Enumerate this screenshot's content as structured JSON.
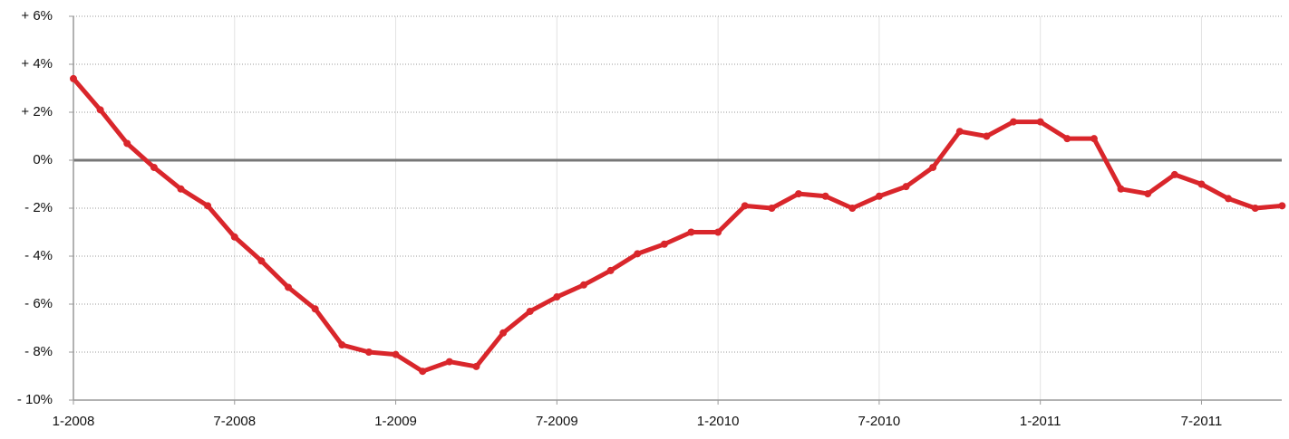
{
  "chart_data": {
    "type": "line",
    "categories": [
      "1-2008",
      null,
      null,
      null,
      null,
      null,
      "7-2008",
      null,
      null,
      null,
      null,
      null,
      "1-2009",
      null,
      null,
      null,
      null,
      null,
      "7-2009",
      null,
      null,
      null,
      null,
      null,
      "1-2010",
      null,
      null,
      null,
      null,
      null,
      "7-2010",
      null,
      null,
      null,
      null,
      null,
      "1-2011",
      null,
      null,
      null,
      null,
      null,
      "7-2011",
      null,
      null,
      null
    ],
    "series": [
      {
        "color": "#d9262b",
        "values": [
          3.4,
          2.1,
          0.7,
          -0.3,
          -1.2,
          -1.9,
          -3.2,
          -4.2,
          -5.3,
          -6.2,
          -7.7,
          -8.0,
          -8.1,
          -8.8,
          -8.4,
          -8.6,
          -7.2,
          -6.3,
          -5.7,
          -5.2,
          -4.6,
          -3.9,
          -3.5,
          -3.0,
          -3.0,
          -1.9,
          -2.0,
          -1.4,
          -1.5,
          -2.0,
          -1.5,
          -1.1,
          -0.3,
          1.2,
          1.0,
          1.6,
          1.6,
          0.9,
          0.9,
          -1.2,
          -1.4,
          -0.6,
          -1.0,
          -1.6,
          -2.0,
          -1.9
        ]
      }
    ],
    "ylim": [
      -10,
      6
    ],
    "yticks": [
      {
        "value": -10,
        "label": "- 10%"
      },
      {
        "value": -8,
        "label": "- 8%"
      },
      {
        "value": -6,
        "label": "- 6%"
      },
      {
        "value": -4,
        "label": "- 4%"
      },
      {
        "value": -2,
        "label": "- 2%"
      },
      {
        "value": 0,
        "label": "0%"
      },
      {
        "value": 2,
        "label": "+ 2%"
      },
      {
        "value": 4,
        "label": "+ 4%"
      },
      {
        "value": 6,
        "label": "+ 6%"
      }
    ],
    "grid": true
  }
}
